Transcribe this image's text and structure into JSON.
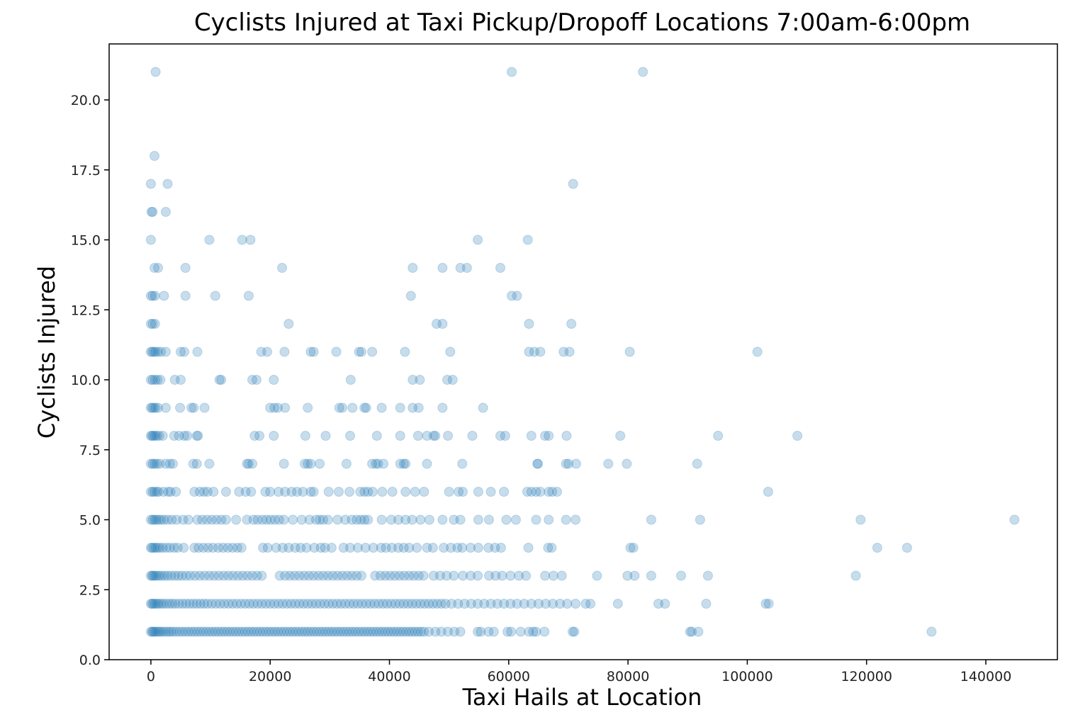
{
  "chart_data": {
    "type": "scatter",
    "title": "Cyclists Injured at Taxi Pickup/Dropoff Locations 7:00am-6:00pm",
    "xlabel": "Taxi Hails at Location",
    "ylabel": "Cyclists Injured",
    "xlim": [
      -7000,
      152000
    ],
    "ylim": [
      0,
      22
    ],
    "x_ticks": [
      0,
      20000,
      40000,
      60000,
      80000,
      100000,
      120000,
      140000
    ],
    "x_tick_labels": [
      "0",
      "20000",
      "40000",
      "60000",
      "80000",
      "100000",
      "120000",
      "140000"
    ],
    "y_ticks": [
      0,
      2.5,
      5,
      7.5,
      10,
      12.5,
      15,
      17.5,
      20
    ],
    "y_tick_labels": [
      "0.0",
      "2.5",
      "5.0",
      "7.5",
      "10.0",
      "12.5",
      "15.0",
      "17.5",
      "20.0"
    ],
    "grid": false,
    "marker_color": "#1f77b4",
    "marker_alpha": 0.25,
    "series": [
      {
        "rows": [
          {
            "y": 21,
            "x": [
              800,
              60500,
              82500
            ]
          },
          {
            "y": 18,
            "x": [
              600
            ]
          },
          {
            "y": 17,
            "x": [
              0,
              2800,
              70800
            ]
          },
          {
            "y": 16,
            "x": [
              100,
              300,
              2500
            ]
          },
          {
            "y": 15,
            "x": [
              0,
              9800,
              15300,
              16700,
              54800,
              63200
            ]
          },
          {
            "y": 14,
            "x": [
              600,
              1200,
              5800,
              22000,
              43900,
              48900,
              51900,
              53000,
              58600
            ]
          },
          {
            "y": 13,
            "x": [
              0,
              300,
              700,
              2200,
              5800,
              10800,
              16400,
              43600,
              60500,
              61400
            ]
          },
          {
            "y": 12,
            "x": [
              0,
              300,
              700,
              23100,
              47900,
              48900,
              63400,
              70500
            ]
          },
          {
            "y": 11,
            "x": [
              0,
              200,
              500,
              800,
              1200,
              1700,
              2500,
              5000,
              5600,
              7800,
              18500,
              19500,
              22400,
              26800,
              27300,
              31100,
              34900,
              35300,
              37100,
              42600,
              50200,
              63400,
              64300,
              65300,
              69200,
              70200,
              80300,
              101700
            ]
          },
          {
            "y": 10,
            "x": [
              0,
              300,
              700,
              1100,
              1600,
              4000,
              5000,
              11500,
              11800,
              17000,
              17700,
              20600,
              33500,
              43900,
              45100,
              49700,
              50600
            ]
          },
          {
            "y": 9,
            "x": [
              0,
              200,
              500,
              800,
              1200,
              2500,
              4900,
              6800,
              7200,
              9000,
              20000,
              20700,
              21300,
              22500,
              26300,
              31600,
              32100,
              33800,
              35800,
              36100,
              38700,
              41800,
              43900,
              44900,
              48900,
              55700
            ]
          },
          {
            "y": 8,
            "x": [
              0,
              200,
              400,
              700,
              1000,
              1400,
              2000,
              3900,
              4700,
              5600,
              6100,
              7700,
              7900,
              17400,
              18200,
              20600,
              25900,
              29300,
              33400,
              37900,
              41800,
              44800,
              46300,
              47400,
              47700,
              49800,
              53900,
              58600,
              59400,
              63800,
              66100,
              66700,
              69700,
              78700,
              95100,
              108400
            ]
          },
          {
            "y": 7,
            "x": [
              0,
              300,
              600,
              1000,
              1500,
              2500,
              3200,
              3700,
              7100,
              7700,
              9800,
              16100,
              16400,
              17000,
              22300,
              25800,
              26300,
              26800,
              28300,
              32800,
              37100,
              37700,
              38100,
              39000,
              41800,
              42400,
              42700,
              46300,
              52200,
              64800,
              64900,
              69600,
              70000,
              71300,
              76700,
              79800,
              91600
            ]
          },
          {
            "y": 6,
            "x": [
              0,
              300,
              600,
              1000,
              1300,
              2100,
              2900,
              3300,
              4200,
              7300,
              8200,
              8900,
              9500,
              10500,
              12600,
              14800,
              15900,
              16800,
              19200,
              20000,
              21400,
              22500,
              23600,
              24500,
              25500,
              26800,
              27300,
              29800,
              31500,
              33300,
              35100,
              35800,
              36400,
              37200,
              38800,
              40500,
              42700,
              44300,
              45800,
              50000,
              51600,
              52300,
              54900,
              57000,
              59200,
              63100,
              63800,
              64600,
              65300,
              66700,
              67300,
              68100,
              103500
            ]
          },
          {
            "y": 5,
            "x": [
              0,
              300,
              600,
              900,
              1300,
              1700,
              2200,
              2800,
              3500,
              4300,
              5400,
              6300,
              7800,
              8600,
              9400,
              10200,
              11000,
              11800,
              12600,
              14300,
              16100,
              17200,
              17900,
              18700,
              19400,
              20100,
              20800,
              21500,
              22300,
              23800,
              25300,
              26600,
              27700,
              28300,
              28900,
              29700,
              31300,
              32600,
              33700,
              34500,
              35200,
              35800,
              36400,
              38700,
              40300,
              41500,
              42700,
              43800,
              45200,
              46700,
              48900,
              50800,
              51900,
              54900,
              56700,
              59600,
              61200,
              64600,
              66700,
              69600,
              71200,
              83900,
              92100,
              119000,
              144800
            ]
          },
          {
            "y": 4,
            "x": [
              0,
              200,
              500,
              800,
              1100,
              1500,
              2000,
              2600,
              3200,
              3900,
              4500,
              5500,
              7300,
              8000,
              8800,
              9600,
              10400,
              11300,
              12100,
              12900,
              13700,
              14500,
              15200,
              18800,
              19600,
              21000,
              22100,
              23100,
              24200,
              25100,
              26100,
              27400,
              28500,
              29200,
              30300,
              32300,
              33400,
              34700,
              36000,
              37300,
              38600,
              39400,
              40400,
              41500,
              42400,
              43300,
              44600,
              46300,
              47300,
              49100,
              50300,
              51400,
              52200,
              53600,
              54900,
              56600,
              57700,
              58700,
              63300,
              66600,
              67200,
              80400,
              80900,
              121800,
              126800
            ]
          },
          {
            "y": 3,
            "x": [
              0,
              200,
              400,
              700,
              1000,
              1400,
              1800,
              2300,
              2800,
              3400,
              4000,
              4600,
              5200,
              5900,
              6600,
              7400,
              8200,
              9000,
              9800,
              10600,
              11400,
              12200,
              13000,
              13800,
              14600,
              15400,
              16200,
              17000,
              17800,
              18600,
              21600,
              22500,
              23300,
              24100,
              24900,
              25700,
              26500,
              27300,
              28100,
              28900,
              29700,
              30500,
              31300,
              32100,
              32900,
              33700,
              34500,
              35300,
              37600,
              38500,
              39300,
              40100,
              40900,
              41700,
              42500,
              43300,
              44100,
              44900,
              45700,
              47400,
              48500,
              49600,
              50800,
              52300,
              53600,
              54800,
              56700,
              57800,
              58900,
              60300,
              61700,
              62900,
              66100,
              67500,
              68900,
              74800,
              79900,
              81100,
              83900,
              88900,
              93400,
              118200
            ]
          },
          {
            "y": 2,
            "x": [
              0,
              200,
              400,
              700,
              1000,
              1300,
              1700,
              2100,
              2600,
              3100,
              3600,
              4100,
              4700,
              5300,
              5900,
              6500,
              7100,
              7700,
              8300,
              8900,
              9500,
              10200,
              10900,
              11600,
              12300,
              13000,
              13700,
              14400,
              15100,
              15800,
              16500,
              17200,
              17900,
              18600,
              19300,
              20000,
              20700,
              21400,
              22100,
              22800,
              23500,
              24200,
              24900,
              25600,
              26300,
              27000,
              27700,
              28400,
              29100,
              29800,
              30500,
              31200,
              31900,
              32600,
              33300,
              34000,
              34700,
              35400,
              36100,
              36800,
              37500,
              38200,
              38900,
              39600,
              40300,
              41000,
              41700,
              42400,
              43100,
              43800,
              44500,
              45200,
              45900,
              46600,
              47300,
              48000,
              48700,
              49400,
              50400,
              51500,
              52600,
              53700,
              54800,
              55900,
              57000,
              58100,
              59200,
              60300,
              61400,
              62600,
              63800,
              65000,
              66200,
              67400,
              68600,
              69800,
              71200,
              72900,
              73700,
              78300,
              85100,
              86200,
              93100,
              103100,
              103600
            ]
          },
          {
            "y": 1,
            "x": [
              0,
              200,
              400,
              600,
              900,
              1200,
              1500,
              1800,
              2200,
              2600,
              3000,
              3400,
              3800,
              4300,
              4800,
              5300,
              5800,
              6300,
              6800,
              7300,
              7800,
              8300,
              8800,
              9300,
              9800,
              10300,
              10800,
              11300,
              11800,
              12300,
              12800,
              13300,
              13800,
              14300,
              14800,
              15300,
              15800,
              16300,
              16800,
              17300,
              17800,
              18300,
              18800,
              19300,
              19800,
              20300,
              20800,
              21300,
              21800,
              22300,
              22800,
              23300,
              23800,
              24300,
              24800,
              25300,
              25800,
              26300,
              26800,
              27300,
              27800,
              28300,
              28800,
              29300,
              29800,
              30300,
              30800,
              31300,
              31800,
              32300,
              32800,
              33300,
              33800,
              34300,
              34800,
              35300,
              35800,
              36300,
              36800,
              37300,
              37800,
              38300,
              38800,
              39300,
              39800,
              40300,
              40800,
              41300,
              41800,
              42300,
              42800,
              43300,
              43800,
              44300,
              44800,
              45300,
              45800,
              46600,
              47700,
              48700,
              49800,
              50900,
              51900,
              54800,
              55300,
              56600,
              57500,
              59800,
              60400,
              62000,
              63400,
              64100,
              64600,
              66000,
              70700,
              71000,
              90400,
              90700,
              91800,
              130900
            ]
          }
        ]
      }
    ]
  }
}
